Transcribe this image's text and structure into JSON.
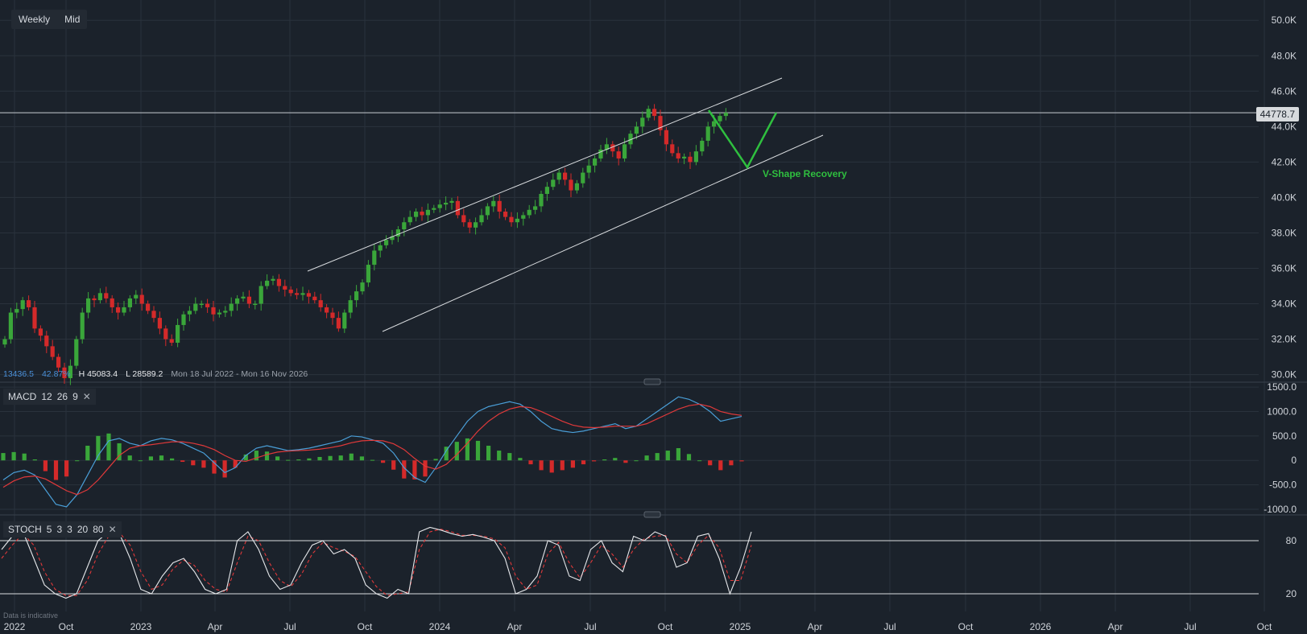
{
  "toolbar": {
    "timeframe": "Weekly",
    "price_type": "Mid"
  },
  "info": {
    "change": "13436.5",
    "change_pct": "42.87%",
    "high": "H 45083.4",
    "low": "L 28589.2",
    "range": "Mon 18 Jul 2022 - Mon 16 Nov 2026"
  },
  "indicators": {
    "macd": {
      "name": "MACD",
      "p1": "12",
      "p2": "26",
      "p3": "9"
    },
    "stoch": {
      "name": "STOCH",
      "p1": "5",
      "p2": "3",
      "p3": "3",
      "p4": "20",
      "p5": "80"
    }
  },
  "current_price": "44778.7",
  "annotation": "V-Shape Recovery",
  "disclaimer": "Data is indicative",
  "colors": {
    "up": "#3aa63a",
    "down": "#d42a2a",
    "macd": "#4a9fd8",
    "signal": "#e0393a",
    "accent_annotation": "#2fbf3f"
  },
  "chart_data": [
    {
      "type": "candlestick",
      "x_ticks": [
        "2022",
        "Oct",
        "2023",
        "Apr",
        "Jul",
        "Oct",
        "2024",
        "Apr",
        "Jul",
        "Oct",
        "2025",
        "Apr",
        "Jul",
        "Oct",
        "2026",
        "Apr",
        "Jul",
        "Oct"
      ],
      "y_ticks": [
        "50.0K",
        "48.0K",
        "46.0K",
        "44.0K",
        "42.0K",
        "40.0K",
        "38.0K",
        "36.0K",
        "34.0K",
        "32.0K",
        "30.0K"
      ],
      "ylim": [
        30000,
        50500
      ],
      "close_series": [
        32000,
        33500,
        33700,
        34200,
        33800,
        32600,
        32200,
        31600,
        31000,
        30400,
        29800,
        30500,
        32000,
        33500,
        34300,
        34200,
        34600,
        34300,
        33800,
        33500,
        33800,
        34300,
        34500,
        34000,
        33600,
        33200,
        32600,
        32000,
        31800,
        32800,
        33400,
        33600,
        34000,
        34000,
        33800,
        33400,
        33500,
        33600,
        34000,
        34300,
        34400,
        34000,
        34000,
        35000,
        35300,
        35400,
        35000,
        34800,
        34600,
        34500,
        34600,
        34400,
        34200,
        33800,
        33500,
        33200,
        32600,
        33500,
        34200,
        34700,
        35200,
        36200,
        37000,
        37300,
        37600,
        37800,
        38200,
        38600,
        38900,
        39200,
        39000,
        39300,
        39400,
        39600,
        39700,
        39800,
        39000,
        38600,
        38300,
        38600,
        39000,
        39500,
        39800,
        39200,
        38900,
        38600,
        38800,
        39000,
        39300,
        39500,
        40200,
        40600,
        41000,
        41400,
        41000,
        40400,
        40800,
        41400,
        41800,
        42200,
        42700,
        43000,
        42600,
        42200,
        43000,
        43600,
        44000,
        44500,
        45000,
        44600,
        43800,
        43000,
        42500,
        42200,
        42300,
        42000,
        42600,
        43200,
        44000,
        44300,
        44600,
        44778.7
      ],
      "trend_channel": {
        "upper": [
          [
            35600,
            "Jul 2023"
          ],
          [
            46800,
            "Mar 2025"
          ]
        ],
        "lower": [
          [
            32400,
            "Nov 2023"
          ],
          [
            43600,
            "Apr 2025"
          ]
        ]
      },
      "v_shape": [
        [
          45100,
          "Dec 2024"
        ],
        [
          41700,
          "Jan 2025"
        ],
        [
          44800,
          "Feb 2025"
        ]
      ]
    },
    {
      "type": "line",
      "name": "MACD",
      "y_ticks": [
        "1500.0",
        "1000.0",
        "500.0",
        "0",
        "-500.0",
        "-1000.0"
      ],
      "ylim": [
        -1000,
        1500
      ],
      "series": [
        {
          "name": "macd",
          "values": [
            -400,
            -250,
            -200,
            -300,
            -600,
            -900,
            -950,
            -700,
            -300,
            100,
            400,
            450,
            350,
            300,
            400,
            450,
            420,
            350,
            250,
            150,
            -50,
            -250,
            -150,
            100,
            250,
            300,
            250,
            200,
            220,
            250,
            300,
            350,
            400,
            500,
            480,
            420,
            350,
            150,
            -150,
            -350,
            -450,
            -150,
            200,
            500,
            800,
            1000,
            1100,
            1150,
            1200,
            1150,
            1000,
            800,
            650,
            600,
            570,
            600,
            650,
            700,
            750,
            650,
            700,
            850,
            1000,
            1150,
            1300,
            1250,
            1150,
            1000,
            800,
            850,
            900
          ]
        },
        {
          "name": "signal",
          "values": [
            -550,
            -420,
            -340,
            -320,
            -380,
            -500,
            -620,
            -700,
            -600,
            -400,
            -150,
            100,
            250,
            300,
            320,
            350,
            380,
            380,
            350,
            300,
            220,
            100,
            0,
            -20,
            50,
            120,
            170,
            190,
            200,
            210,
            230,
            260,
            300,
            360,
            400,
            410,
            400,
            340,
            220,
            40,
            -120,
            -180,
            -80,
            120,
            350,
            600,
            800,
            950,
            1050,
            1100,
            1080,
            1000,
            900,
            800,
            720,
            680,
            670,
            680,
            700,
            700,
            700,
            750,
            850,
            950,
            1050,
            1120,
            1150,
            1100,
            1000,
            950,
            920
          ]
        },
        {
          "name": "histogram",
          "values": [
            150,
            170,
            140,
            20,
            -220,
            -400,
            -330,
            0,
            300,
            500,
            550,
            350,
            100,
            0,
            80,
            100,
            40,
            -30,
            -100,
            -150,
            -270,
            -350,
            -150,
            120,
            200,
            180,
            80,
            10,
            20,
            40,
            70,
            90,
            100,
            140,
            80,
            10,
            -50,
            -190,
            -370,
            -390,
            -330,
            30,
            280,
            380,
            450,
            400,
            300,
            200,
            150,
            50,
            -80,
            -200,
            -250,
            -200,
            -150,
            -80,
            -20,
            20,
            50,
            -50,
            0,
            100,
            150,
            200,
            250,
            130,
            0,
            -100,
            -200,
            -100,
            -20
          ]
        }
      ]
    },
    {
      "type": "line",
      "name": "STOCH",
      "y_ticks": [
        "80",
        "20"
      ],
      "ylim": [
        0,
        100
      ],
      "levels": [
        80,
        20
      ],
      "series": [
        {
          "name": "%K",
          "values": [
            70,
            85,
            90,
            60,
            30,
            20,
            15,
            20,
            50,
            80,
            90,
            88,
            60,
            25,
            20,
            40,
            55,
            60,
            45,
            25,
            20,
            25,
            80,
            90,
            70,
            40,
            25,
            30,
            55,
            75,
            80,
            65,
            70,
            60,
            30,
            20,
            15,
            25,
            20,
            90,
            95,
            92,
            88,
            85,
            87,
            84,
            80,
            60,
            20,
            25,
            40,
            80,
            75,
            40,
            35,
            70,
            80,
            55,
            45,
            85,
            80,
            90,
            85,
            50,
            55,
            85,
            88,
            60,
            20,
            50,
            90
          ]
        },
        {
          "name": "%D",
          "values": [
            60,
            75,
            88,
            75,
            45,
            25,
            18,
            18,
            35,
            65,
            85,
            89,
            75,
            45,
            25,
            30,
            48,
            58,
            52,
            35,
            25,
            22,
            55,
            85,
            80,
            55,
            35,
            28,
            42,
            65,
            78,
            72,
            68,
            62,
            45,
            28,
            18,
            20,
            22,
            70,
            90,
            93,
            90,
            86,
            86,
            85,
            82,
            72,
            40,
            25,
            30,
            65,
            78,
            55,
            38,
            55,
            75,
            65,
            50,
            70,
            82,
            85,
            86,
            65,
            55,
            75,
            86,
            72,
            35,
            35,
            75
          ]
        }
      ]
    }
  ]
}
